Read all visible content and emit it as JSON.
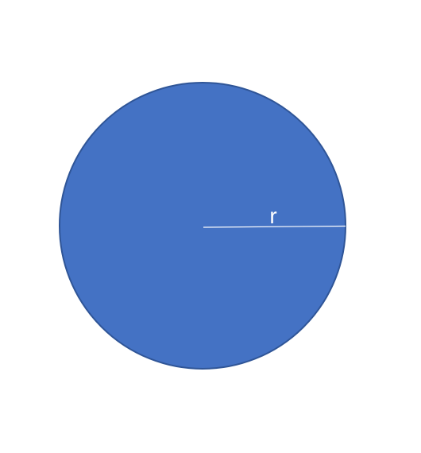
{
  "diagram": {
    "radius_label": "r",
    "colors": {
      "circle_fill": "#4472C4",
      "circle_stroke": "#2F5597",
      "radius_line": "#FFFFFF",
      "label": "#FFFFFF",
      "background": "#FFFFFF"
    }
  }
}
